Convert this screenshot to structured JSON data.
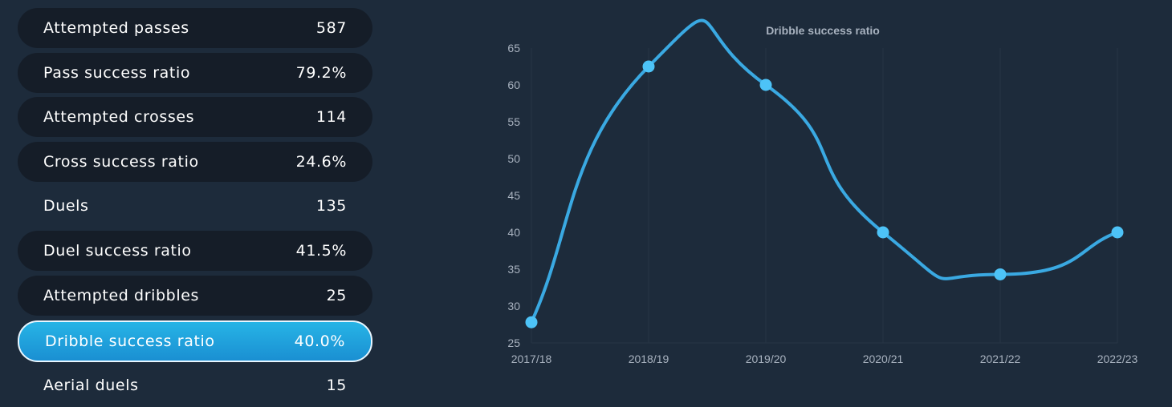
{
  "stats": [
    {
      "label": "Attempted passes",
      "value": "587",
      "style": "dark"
    },
    {
      "label": "Pass success ratio",
      "value": "79.2%",
      "style": "dark"
    },
    {
      "label": "Attempted crosses",
      "value": "114",
      "style": "dark"
    },
    {
      "label": "Cross success ratio",
      "value": "24.6%",
      "style": "dark"
    },
    {
      "label": "Duels",
      "value": "135",
      "style": "plain"
    },
    {
      "label": "Duel success ratio",
      "value": "41.5%",
      "style": "dark"
    },
    {
      "label": "Attempted dribbles",
      "value": "25",
      "style": "dark"
    },
    {
      "label": "Dribble success ratio",
      "value": "40.0%",
      "style": "active"
    },
    {
      "label": "Aerial duels",
      "value": "15",
      "style": "plain"
    }
  ],
  "colors": {
    "background": "#1d2b3b",
    "row_dark": "#151d28",
    "active_start": "#27b4e6",
    "active_end": "#1a8fd2",
    "line": "#3aa9e2",
    "point": "#4dc3f7",
    "grid": "#263445",
    "tick_text": "#a8b2bf"
  },
  "chart_data": {
    "type": "line",
    "title": "Dribble success ratio",
    "categories": [
      "2017/18",
      "2018/19",
      "2019/20",
      "2020/21",
      "2021/22",
      "2022/23"
    ],
    "series": [
      {
        "values": [
          27.8,
          62.5,
          60.0,
          40.0,
          34.3,
          40.0
        ]
      }
    ],
    "ylim": [
      25,
      65
    ],
    "yticks": [
      25,
      30,
      35,
      40,
      45,
      50,
      55,
      60,
      65
    ],
    "grid": true,
    "smooth": true
  }
}
